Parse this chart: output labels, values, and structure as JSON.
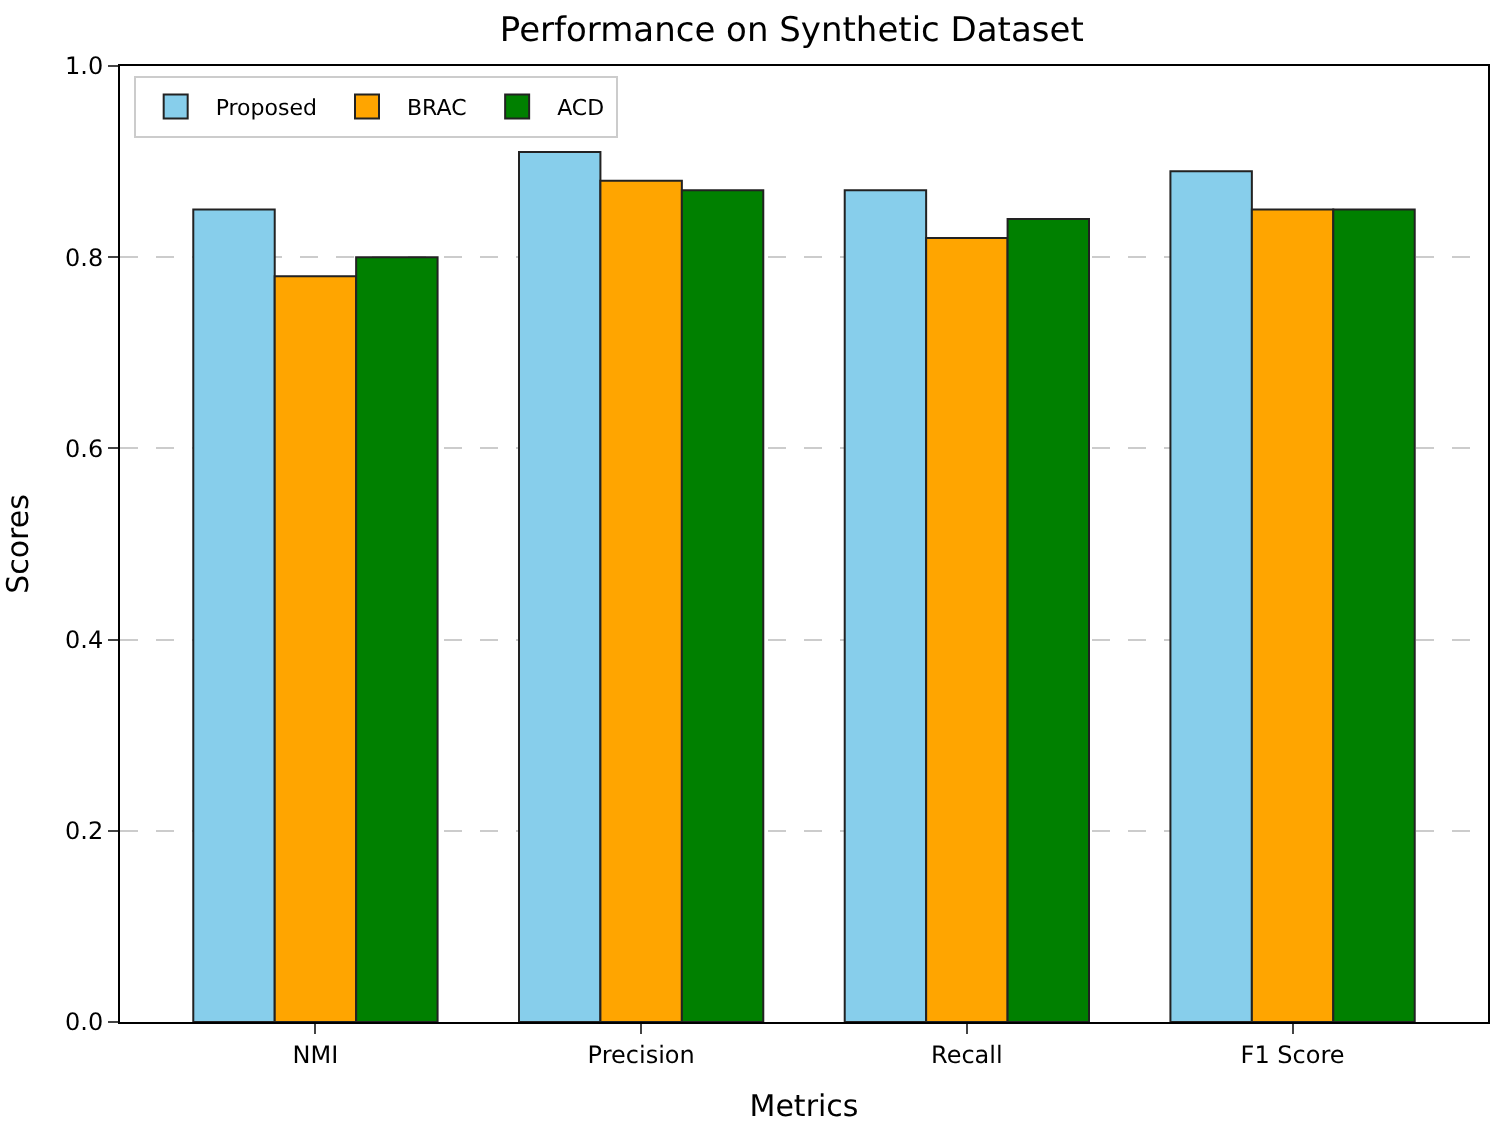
{
  "chart_data": {
    "type": "bar",
    "title": "Performance on Synthetic Dataset",
    "xlabel": "Metrics",
    "ylabel": "Scores",
    "categories": [
      "NMI",
      "Precision",
      "Recall",
      "F1 Score"
    ],
    "series": [
      {
        "name": "Proposed",
        "color": "#87ceeb",
        "values": [
          0.85,
          0.91,
          0.87,
          0.89
        ]
      },
      {
        "name": "BRAC",
        "color": "#ffa500",
        "values": [
          0.78,
          0.88,
          0.82,
          0.85
        ]
      },
      {
        "name": "ACD",
        "color": "#008000",
        "values": [
          0.8,
          0.87,
          0.84,
          0.85
        ]
      }
    ],
    "ylim": [
      0,
      1
    ],
    "yticks": [
      {
        "value": 0,
        "label": "0.0"
      },
      {
        "value": 0.2,
        "label": "0.2"
      },
      {
        "value": 0.4,
        "label": "0.4"
      },
      {
        "value": 0.6,
        "label": "0.6"
      },
      {
        "value": 0.8,
        "label": "0.8"
      },
      {
        "value": 1,
        "label": "1.0"
      }
    ],
    "grid": "y",
    "legend": "top left"
  }
}
